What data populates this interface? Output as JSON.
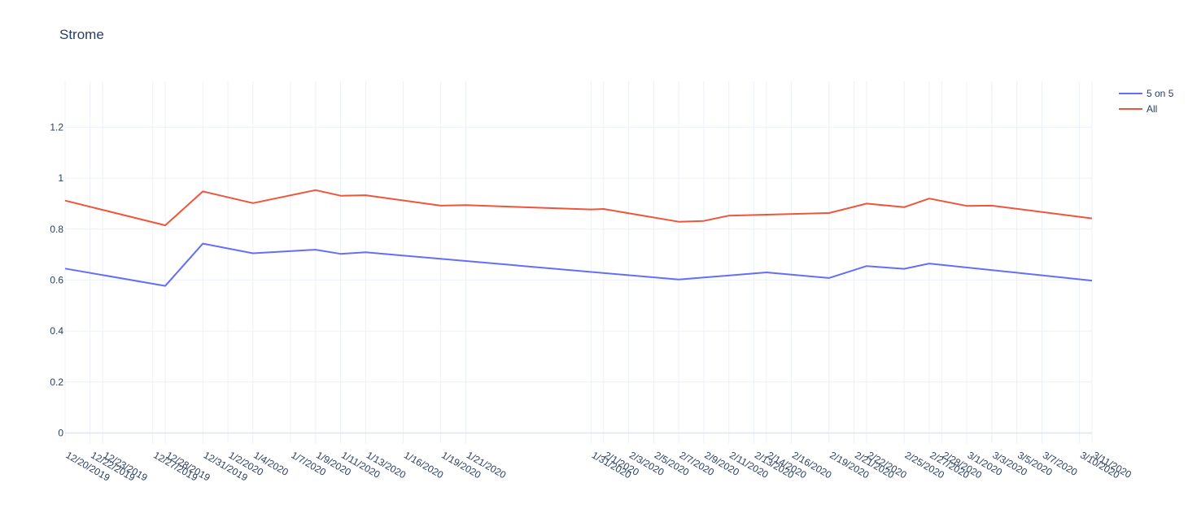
{
  "chart_data": {
    "type": "line",
    "title": "Strome",
    "xlabel": "",
    "ylabel": "",
    "ylim": [
      -0.04,
      1.38
    ],
    "yticks": [
      0,
      0.2,
      0.4,
      0.6,
      0.8,
      1,
      1.2
    ],
    "grid": true,
    "legend_position": "top-right",
    "categories": [
      "12/20/2019",
      "12/22/2019",
      "12/23/2019",
      "12/27/2019",
      "12/28/2019",
      "12/31/2019",
      "1/2/2020",
      "1/4/2020",
      "1/7/2020",
      "1/9/2020",
      "1/11/2020",
      "1/13/2020",
      "1/16/2020",
      "1/19/2020",
      "1/21/2020",
      "1/31/2020",
      "2/1/2020",
      "2/3/2020",
      "2/5/2020",
      "2/7/2020",
      "2/9/2020",
      "2/11/2020",
      "2/13/2020",
      "2/14/2020",
      "2/16/2020",
      "2/19/2020",
      "2/21/2020",
      "2/22/2020",
      "2/25/2020",
      "2/27/2020",
      "2/28/2020",
      "3/1/2020",
      "3/3/2020",
      "3/5/2020",
      "3/7/2020",
      "3/10/2020",
      "3/11/2020"
    ],
    "series": [
      {
        "name": "5 on 5",
        "color": "#636efa",
        "points": [
          {
            "x": "12/20/2019",
            "y": 0.645
          },
          {
            "x": "12/28/2019",
            "y": 0.577
          },
          {
            "x": "12/31/2019",
            "y": 0.743
          },
          {
            "x": "1/4/2020",
            "y": 0.705
          },
          {
            "x": "1/9/2020",
            "y": 0.719
          },
          {
            "x": "1/11/2020",
            "y": 0.703
          },
          {
            "x": "1/13/2020",
            "y": 0.709
          },
          {
            "x": "2/7/2020",
            "y": 0.602
          },
          {
            "x": "2/14/2020",
            "y": 0.63
          },
          {
            "x": "2/19/2020",
            "y": 0.608
          },
          {
            "x": "2/22/2020",
            "y": 0.655
          },
          {
            "x": "2/25/2020",
            "y": 0.644
          },
          {
            "x": "2/27/2020",
            "y": 0.665
          },
          {
            "x": "3/11/2020",
            "y": 0.598
          }
        ]
      },
      {
        "name": "All",
        "color": "#ef553b",
        "points": [
          {
            "x": "12/20/2019",
            "y": 0.912
          },
          {
            "x": "12/28/2019",
            "y": 0.815
          },
          {
            "x": "12/31/2019",
            "y": 0.948
          },
          {
            "x": "1/4/2020",
            "y": 0.902
          },
          {
            "x": "1/9/2020",
            "y": 0.953
          },
          {
            "x": "1/11/2020",
            "y": 0.931
          },
          {
            "x": "1/13/2020",
            "y": 0.933
          },
          {
            "x": "1/19/2020",
            "y": 0.892
          },
          {
            "x": "1/21/2020",
            "y": 0.894
          },
          {
            "x": "1/31/2020",
            "y": 0.877
          },
          {
            "x": "2/1/2020",
            "y": 0.879
          },
          {
            "x": "2/7/2020",
            "y": 0.829
          },
          {
            "x": "2/9/2020",
            "y": 0.832
          },
          {
            "x": "2/11/2020",
            "y": 0.853
          },
          {
            "x": "2/19/2020",
            "y": 0.863
          },
          {
            "x": "2/22/2020",
            "y": 0.9
          },
          {
            "x": "2/25/2020",
            "y": 0.886
          },
          {
            "x": "2/27/2020",
            "y": 0.92
          },
          {
            "x": "3/1/2020",
            "y": 0.891
          },
          {
            "x": "3/3/2020",
            "y": 0.892
          },
          {
            "x": "3/11/2020",
            "y": 0.842
          }
        ]
      }
    ]
  }
}
